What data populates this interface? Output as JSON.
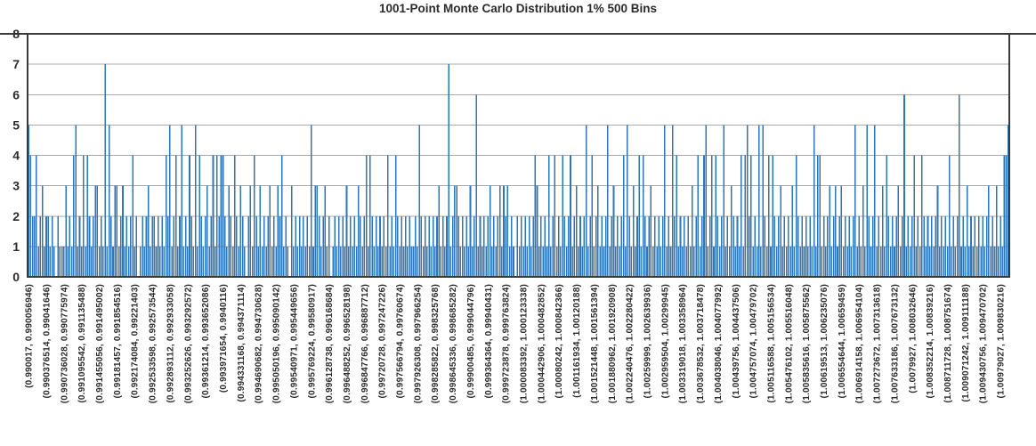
{
  "chart_data": {
    "type": "bar",
    "title": "1001-Point Monte Carlo Distribution 1% 500 Bins",
    "xlabel": "",
    "ylabel": "",
    "ylim": [
      0,
      8
    ],
    "grid": true,
    "legend_position": "none",
    "bins": 500,
    "x_tick_every_bins": 9,
    "bar_color": "#2E76B5",
    "grid_color": "#A9A9A9",
    "axis_color": "#3B3B3B",
    "text_color": "#2B2B2B",
    "yticks": [
      "0",
      "1",
      "2",
      "3",
      "4",
      "5",
      "6",
      "7",
      "8"
    ],
    "x_tick_labels": [
      "(0.990017, 0.990056946)",
      "(0.990376514, 0.99041646)",
      "(0.990736028, 0.990775974)",
      "(0.991095542, 0.991135488)",
      "(0.991455056, 0.991495002)",
      "(0.99181457, 0.991854516)",
      "(0.992174084, 0.99221403)",
      "(0.992533598, 0.992573544)",
      "(0.992893112, 0.992933058)",
      "(0.993252626, 0.993292572)",
      "(0.99361214, 0.993652086)",
      "(0.993971654, 0.9940116)",
      "(0.994331168, 0.994371114)",
      "(0.994690682, 0.994730628)",
      "(0.995050196, 0.995090142)",
      "(0.99540971, 0.995449656)",
      "(0.995769224, 0.99580917)",
      "(0.996128738, 0.996168684)",
      "(0.996488252, 0.996528198)",
      "(0.996847766, 0.996887712)",
      "(0.99720728, 0.997247226)",
      "(0.997566794, 0.99760674)",
      "(0.997926308, 0.997966254)",
      "(0.998285822, 0.998325768)",
      "(0.998645336, 0.998685282)",
      "(0.99900485, 0.999044796)",
      "(0.999364364, 0.99940431)",
      "(0.999723878, 0.999763824)",
      "(1.000083392, 1.000123338)",
      "(1.000442906, 1.000482852)",
      "(1.00080242, 1.000842366)",
      "(1.001161934, 1.00120188)",
      "(1.001521448, 1.001561394)",
      "(1.001880962, 1.001920908)",
      "(1.002240476, 1.002280422)",
      "(1.00259999, 1.002639936)",
      "(1.002959504, 1.00299945)",
      "(1.003319018, 1.003358964)",
      "(1.003678532, 1.003718478)",
      "(1.004038046, 1.004077992)",
      "(1.00439756, 1.004437506)",
      "(1.004757074, 1.00479702)",
      "(1.005116588, 1.005156534)",
      "(1.005476102, 1.005516048)",
      "(1.005835616, 1.005875562)",
      "(1.00619513, 1.006235076)",
      "(1.006554644, 1.00659459)",
      "(1.006914158, 1.006954104)",
      "(1.007273672, 1.007313618)",
      "(1.007633186, 1.007673132)",
      "(1.0079927, 1.008032646)",
      "(1.008352214, 1.00839216)",
      "(1.008711728, 1.008751674)",
      "(1.009071242, 1.009111188)",
      "(1.009430756, 1.009470702)",
      "(1.00979027, 1.009830216)"
    ],
    "values": [
      5,
      4,
      2,
      2,
      4,
      1,
      2,
      3,
      1,
      2,
      2,
      1,
      2,
      1,
      0,
      2,
      1,
      1,
      1,
      3,
      1,
      2,
      1,
      4,
      5,
      1,
      2,
      1,
      4,
      1,
      4,
      2,
      1,
      2,
      3,
      3,
      1,
      2,
      1,
      7,
      1,
      5,
      2,
      1,
      3,
      3,
      1,
      2,
      3,
      1,
      2,
      1,
      2,
      4,
      1,
      2,
      0,
      1,
      2,
      1,
      2,
      3,
      1,
      2,
      2,
      1,
      2,
      1,
      2,
      1,
      4,
      2,
      5,
      1,
      2,
      4,
      1,
      2,
      5,
      1,
      2,
      1,
      4,
      2,
      1,
      5,
      1,
      4,
      2,
      1,
      2,
      3,
      1,
      2,
      4,
      1,
      4,
      2,
      4,
      4,
      2,
      1,
      3,
      2,
      1,
      4,
      2,
      1,
      3,
      2,
      1,
      0,
      2,
      3,
      1,
      4,
      2,
      1,
      3,
      1,
      2,
      1,
      2,
      3,
      1,
      2,
      1,
      3,
      2,
      4,
      1,
      2,
      1,
      0,
      3,
      1,
      2,
      1,
      2,
      1,
      2,
      1,
      2,
      1,
      5,
      1,
      3,
      3,
      2,
      1,
      2,
      3,
      1,
      2,
      0,
      1,
      2,
      1,
      2,
      1,
      2,
      1,
      3,
      1,
      2,
      1,
      2,
      1,
      3,
      2,
      1,
      2,
      4,
      1,
      4,
      2,
      1,
      2,
      1,
      2,
      1,
      2,
      1,
      4,
      1,
      2,
      1,
      4,
      2,
      1,
      2,
      1,
      2,
      1,
      2,
      1,
      1,
      2,
      1,
      5,
      2,
      1,
      2,
      1,
      2,
      1,
      2,
      1,
      2,
      3,
      1,
      2,
      1,
      2,
      7,
      1,
      2,
      3,
      3,
      2,
      1,
      2,
      1,
      2,
      1,
      3,
      1,
      2,
      6,
      1,
      2,
      1,
      2,
      1,
      2,
      3,
      1,
      2,
      1,
      2,
      3,
      1,
      3,
      2,
      3,
      1,
      2,
      1,
      0,
      2,
      1,
      2,
      1,
      2,
      1,
      2,
      1,
      2,
      4,
      3,
      1,
      2,
      1,
      2,
      1,
      4,
      1,
      2,
      4,
      1,
      2,
      1,
      4,
      2,
      1,
      2,
      4,
      1,
      2,
      3,
      1,
      2,
      1,
      2,
      5,
      1,
      2,
      4,
      1,
      2,
      3,
      1,
      2,
      1,
      2,
      5,
      1,
      2,
      3,
      1,
      2,
      1,
      2,
      4,
      1,
      5,
      2,
      1,
      3,
      1,
      2,
      4,
      1,
      4,
      2,
      1,
      2,
      3,
      1,
      2,
      1,
      2,
      1,
      2,
      5,
      1,
      2,
      1,
      5,
      2,
      4,
      1,
      2,
      1,
      2,
      1,
      2,
      1,
      3,
      1,
      2,
      4,
      1,
      2,
      4,
      5,
      1,
      2,
      4,
      1,
      4,
      2,
      1,
      2,
      5,
      1,
      2,
      1,
      3,
      2,
      1,
      2,
      1,
      4,
      1,
      4,
      5,
      2,
      4,
      1,
      2,
      1,
      5,
      1,
      5,
      2,
      1,
      4,
      1,
      4,
      2,
      1,
      2,
      3,
      1,
      2,
      1,
      2,
      1,
      3,
      1,
      4,
      2,
      1,
      2,
      1,
      2,
      1,
      2,
      1,
      5,
      1,
      4,
      4,
      1,
      2,
      1,
      2,
      3,
      1,
      2,
      3,
      1,
      2,
      3,
      1,
      2,
      1,
      2,
      1,
      2,
      5,
      1,
      2,
      1,
      3,
      1,
      5,
      2,
      1,
      2,
      5,
      1,
      2,
      1,
      3,
      1,
      4,
      2,
      1,
      2,
      1,
      2,
      3,
      1,
      2,
      6,
      1,
      2,
      1,
      2,
      4,
      1,
      2,
      1,
      4,
      2,
      1,
      2,
      1,
      2,
      1,
      2,
      3,
      1,
      2,
      1,
      2,
      1,
      4,
      1,
      2,
      1,
      2,
      6,
      1,
      2,
      1,
      3,
      1,
      2,
      1,
      2,
      1,
      2,
      1,
      2,
      1,
      2,
      3,
      1,
      2,
      1,
      3,
      1,
      2,
      1,
      4,
      4,
      5
    ]
  }
}
